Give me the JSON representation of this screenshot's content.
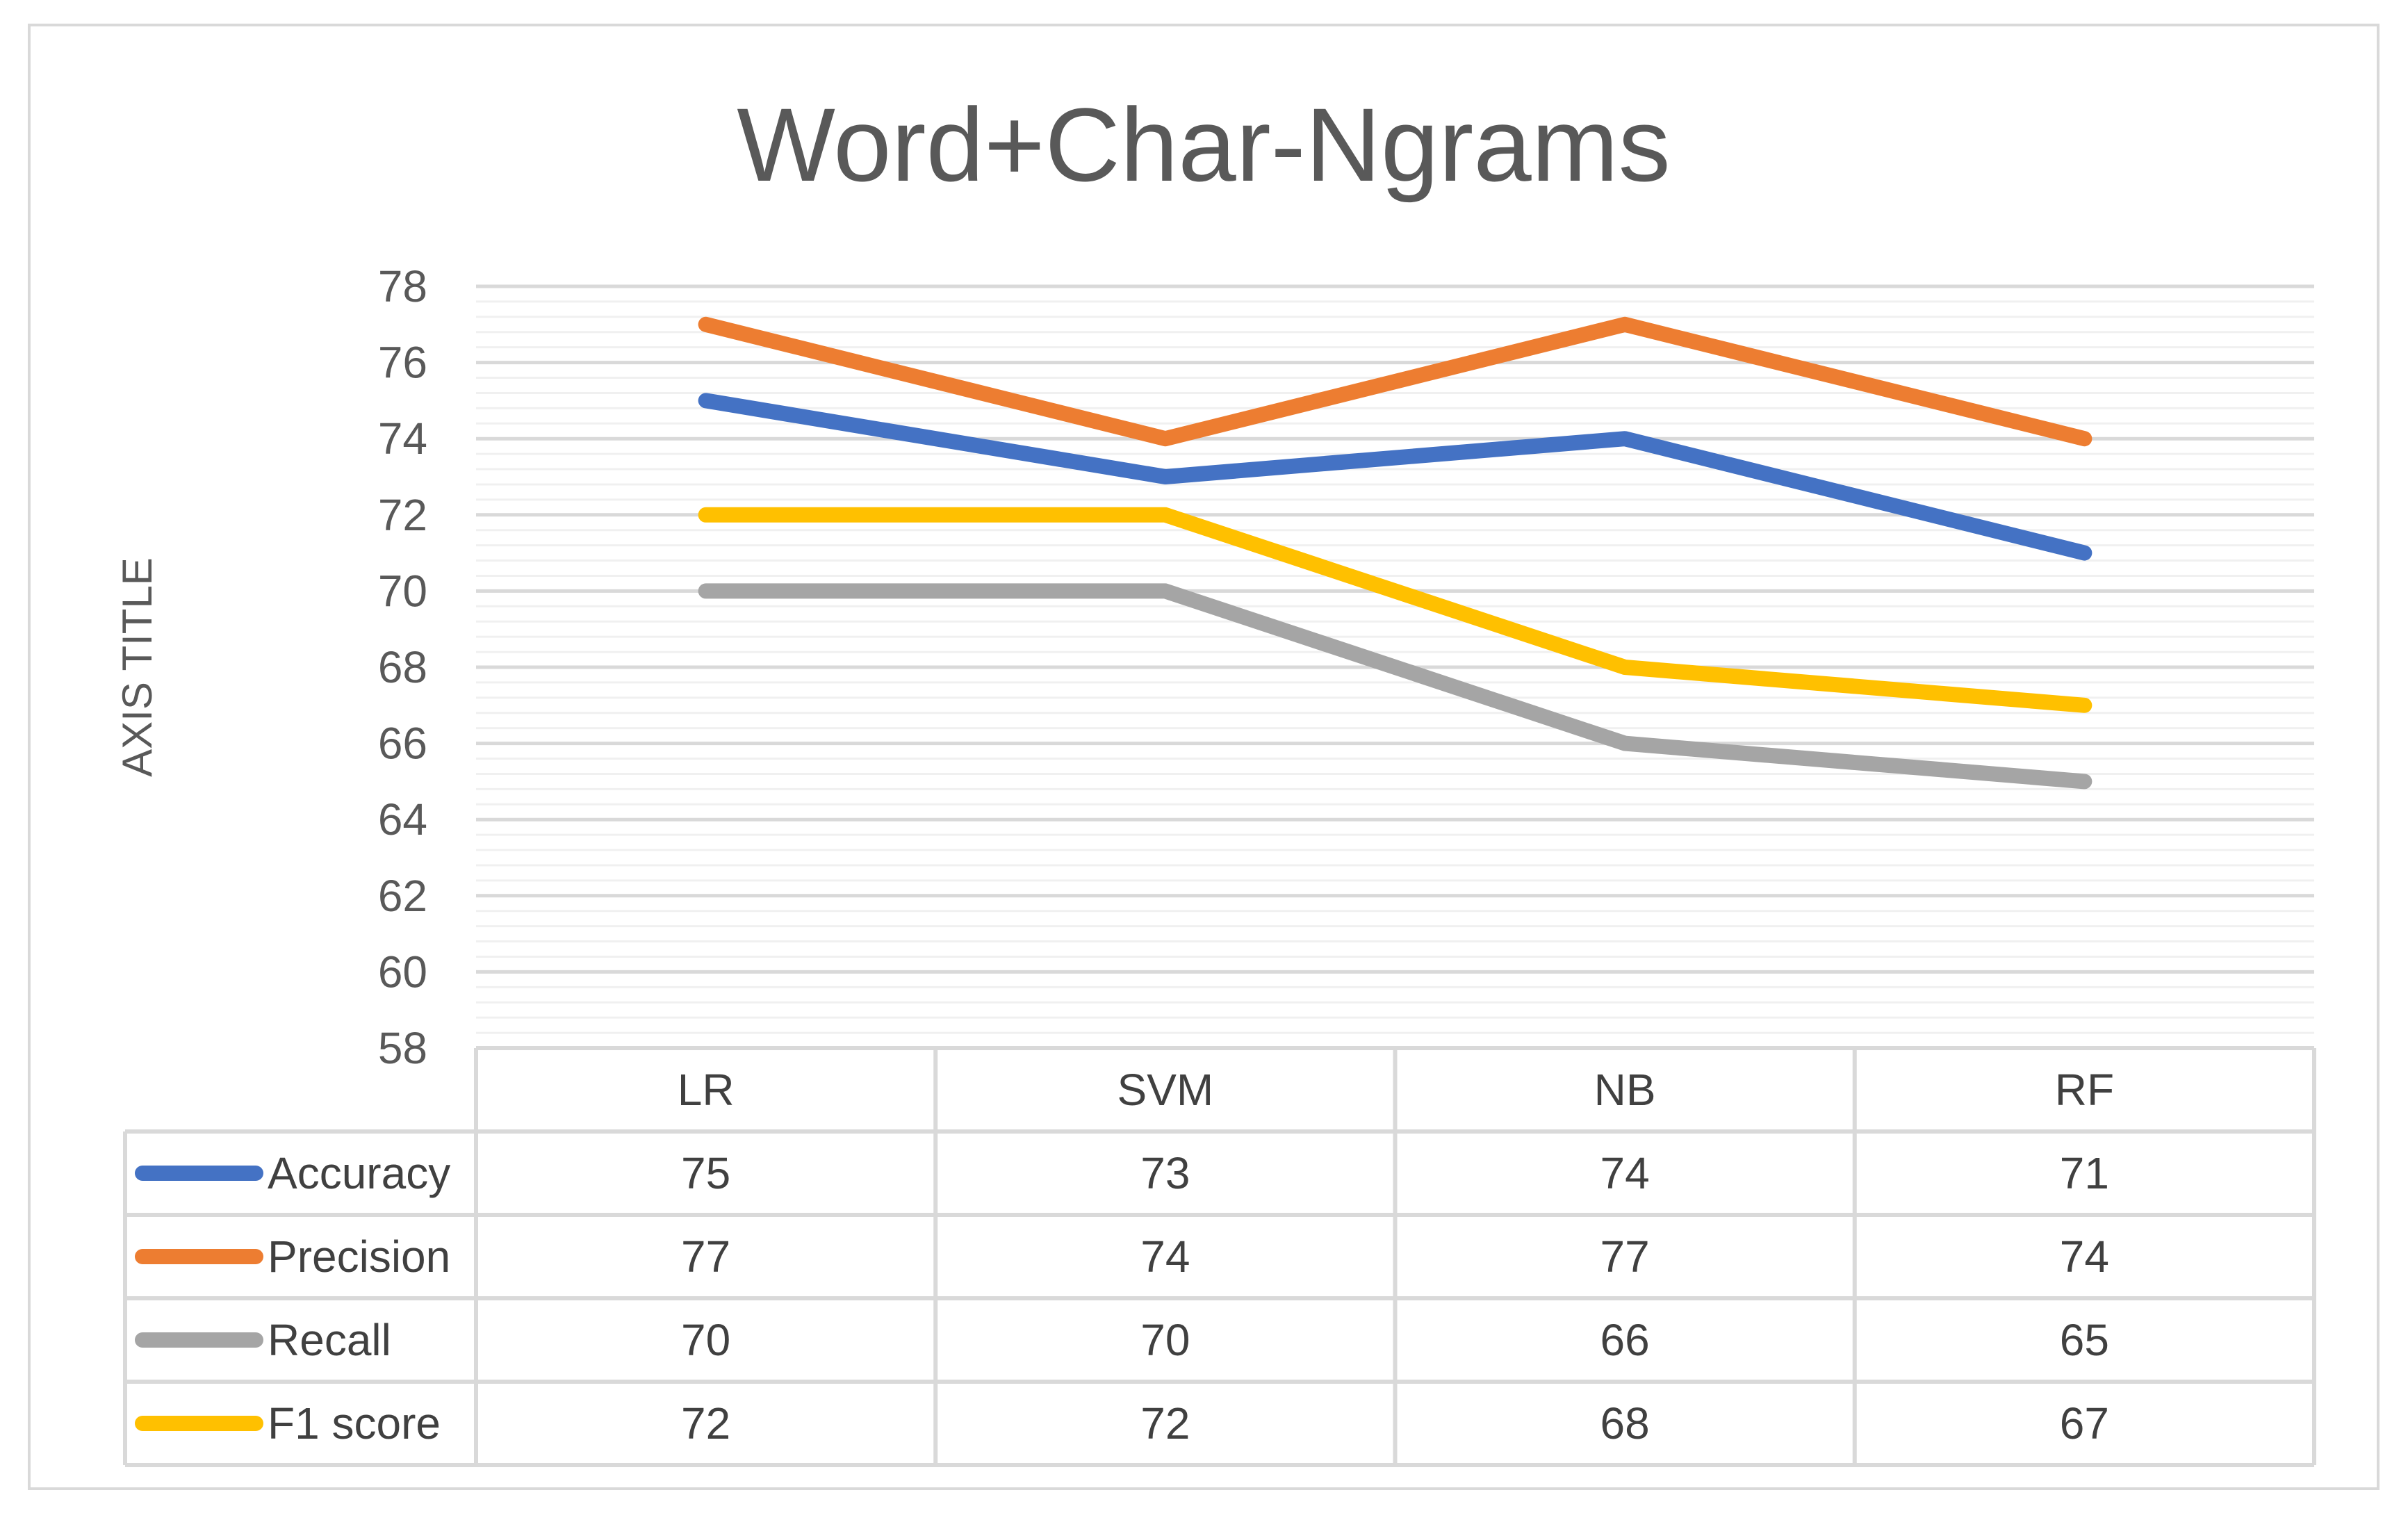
{
  "chart_data": {
    "type": "line",
    "title": "Word+Char-Ngrams",
    "ylabel": "AXIS TITLE",
    "xlabel": "",
    "categories": [
      "LR",
      "SVM",
      "NB",
      "RF"
    ],
    "ylim": [
      58,
      78
    ],
    "y_ticks": [
      58,
      60,
      62,
      64,
      66,
      68,
      70,
      72,
      74,
      76,
      78
    ],
    "grid": true,
    "legend": "data-table",
    "series": [
      {
        "name": "Accuracy",
        "color": "#4472c4",
        "values": [
          75,
          73,
          74,
          71
        ]
      },
      {
        "name": "Precision",
        "color": "#ed7d31",
        "values": [
          77,
          74,
          77,
          74
        ]
      },
      {
        "name": "Recall",
        "color": "#a5a5a5",
        "values": [
          70,
          70,
          66,
          65
        ]
      },
      {
        "name": "F1 score",
        "color": "#ffc000",
        "values": [
          72,
          72,
          68,
          67
        ]
      }
    ]
  }
}
